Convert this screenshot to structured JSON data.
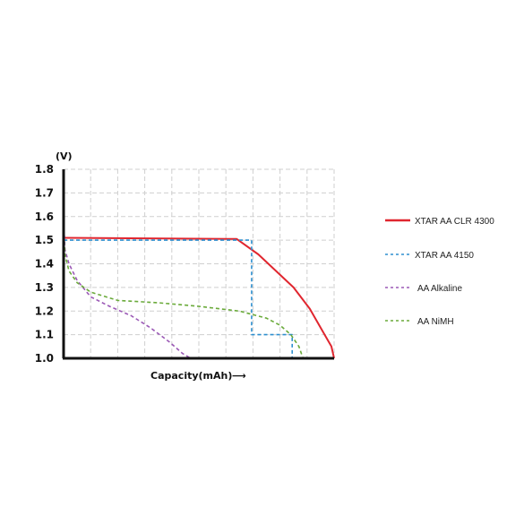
{
  "chart_data": {
    "type": "line",
    "title": "",
    "ylabel": "(V)",
    "xlabel": "Capacity(mAh)",
    "xlabel_arrow": "⟶",
    "ylim": [
      1.0,
      1.8
    ],
    "y_ticks": [
      "1.8",
      "1.7",
      "1.6",
      "1.5",
      "1.4",
      "1.3",
      "1.2",
      "1.1",
      "1.0"
    ],
    "x_tick_labels": [],
    "grid": true,
    "legend_position": "right",
    "series": [
      {
        "name": "XTAR AA CLR 4300",
        "color": "#e0262f",
        "style": "solid",
        "points": [
          [
            0,
            1.51
          ],
          [
            0.64,
            1.505
          ],
          [
            0.72,
            1.44
          ],
          [
            0.85,
            1.3
          ],
          [
            0.91,
            1.21
          ],
          [
            0.96,
            1.11
          ],
          [
            0.99,
            1.05
          ],
          [
            1.0,
            1.0
          ]
        ]
      },
      {
        "name": "XTAR AA 4150",
        "color": "#2e8fcf",
        "style": "dashed",
        "points": [
          [
            0,
            1.5
          ],
          [
            0.695,
            1.5
          ],
          [
            0.695,
            1.1
          ],
          [
            0.845,
            1.1
          ],
          [
            0.845,
            1.0
          ]
        ]
      },
      {
        "name": "AA Alkaline",
        "color": "#9b59b6",
        "style": "dashed",
        "points": [
          [
            0,
            1.6
          ],
          [
            0.005,
            1.46
          ],
          [
            0.02,
            1.4
          ],
          [
            0.05,
            1.33
          ],
          [
            0.1,
            1.26
          ],
          [
            0.17,
            1.22
          ],
          [
            0.25,
            1.18
          ],
          [
            0.32,
            1.13
          ],
          [
            0.39,
            1.07
          ],
          [
            0.44,
            1.02
          ],
          [
            0.47,
            1.0
          ]
        ]
      },
      {
        "name": "AA NiMH",
        "color": "#6aaa3a",
        "style": "dashed",
        "points": [
          [
            0,
            1.55
          ],
          [
            0.005,
            1.44
          ],
          [
            0.02,
            1.37
          ],
          [
            0.05,
            1.32
          ],
          [
            0.1,
            1.28
          ],
          [
            0.2,
            1.245
          ],
          [
            0.35,
            1.235
          ],
          [
            0.5,
            1.22
          ],
          [
            0.65,
            1.2
          ],
          [
            0.75,
            1.17
          ],
          [
            0.8,
            1.14
          ],
          [
            0.84,
            1.1
          ],
          [
            0.87,
            1.05
          ],
          [
            0.885,
            1.0
          ]
        ]
      }
    ]
  }
}
